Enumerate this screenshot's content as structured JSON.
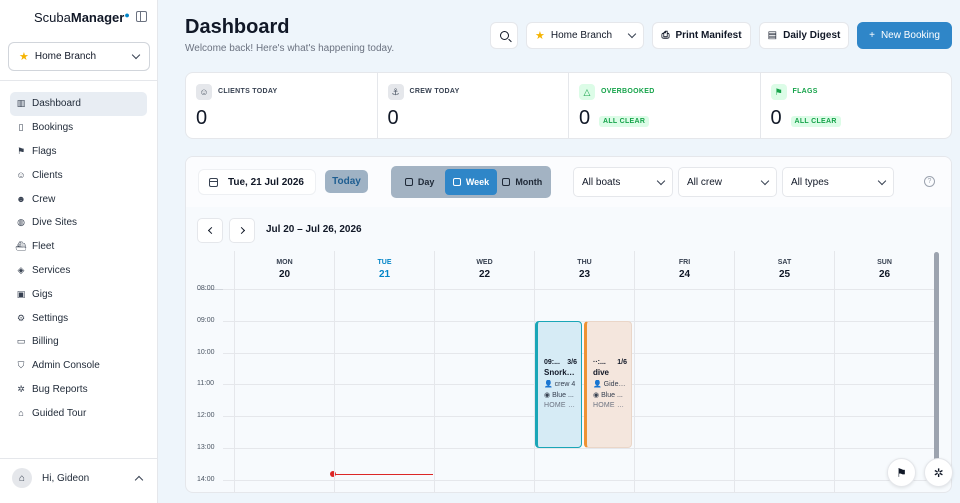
{
  "sidebar": {
    "brand_light": "Scuba",
    "brand_bold": "Manager",
    "branch": "Home Branch",
    "items": [
      {
        "label": "Dashboard",
        "icon": "chart-icon",
        "glyph": "▥",
        "active": true
      },
      {
        "label": "Bookings",
        "icon": "book-icon",
        "glyph": "▯"
      },
      {
        "label": "Flags",
        "icon": "flag-icon",
        "glyph": "⚑"
      },
      {
        "label": "Clients",
        "icon": "users-icon",
        "glyph": "☺"
      },
      {
        "label": "Crew",
        "icon": "user-plus-icon",
        "glyph": "☻"
      },
      {
        "label": "Dive Sites",
        "icon": "globe-icon",
        "glyph": "◍"
      },
      {
        "label": "Fleet",
        "icon": "ship-icon",
        "glyph": "⛴"
      },
      {
        "label": "Services",
        "icon": "package-icon",
        "glyph": "◈"
      },
      {
        "label": "Gigs",
        "icon": "briefcase-icon",
        "glyph": "▣"
      },
      {
        "label": "Settings",
        "icon": "gear-icon",
        "glyph": "⚙"
      },
      {
        "label": "Billing",
        "icon": "credit-card-icon",
        "glyph": "▭"
      },
      {
        "label": "Admin Console",
        "icon": "shield-icon",
        "glyph": "⛉"
      },
      {
        "label": "Bug Reports",
        "icon": "bug-icon",
        "glyph": "✲"
      },
      {
        "label": "Guided Tour",
        "icon": "graduation-cap-icon",
        "glyph": "⌂"
      }
    ],
    "user_greeting": "Hi, Gideon"
  },
  "header": {
    "title": "Dashboard",
    "subtitle": "Welcome back! Here's what's happening today.",
    "branch": "Home Branch",
    "print_label": "Print Manifest",
    "digest_label": "Daily Digest",
    "new_label": "New Booking"
  },
  "stats": [
    {
      "label": "CLIENTS TODAY",
      "value": "0",
      "icon": "users-icon",
      "glyph": "☺"
    },
    {
      "label": "CREW TODAY",
      "value": "0",
      "icon": "anchor-icon",
      "glyph": "⚓"
    },
    {
      "label": "OVERBOOKED",
      "value": "0",
      "badge": "ALL CLEAR",
      "icon": "warning-icon",
      "glyph": "△"
    },
    {
      "label": "FLAGS",
      "value": "0",
      "badge": "ALL CLEAR",
      "icon": "flag-icon",
      "glyph": "⚑"
    }
  ],
  "calendar": {
    "date": "Tue, 21 Jul 2026",
    "today_label": "Today",
    "views": [
      "Day",
      "Week",
      "Month"
    ],
    "active_view": "Week",
    "filters": [
      "All boats",
      "All crew",
      "All types"
    ],
    "range": "Jul 20 – Jul 26, 2026",
    "days": [
      {
        "name": "MON",
        "num": "20"
      },
      {
        "name": "TUE",
        "num": "21",
        "today": true
      },
      {
        "name": "WED",
        "num": "22"
      },
      {
        "name": "THU",
        "num": "23"
      },
      {
        "name": "FRI",
        "num": "24"
      },
      {
        "name": "SAT",
        "num": "25"
      },
      {
        "name": "SUN",
        "num": "26"
      }
    ],
    "hours": [
      "08:00",
      "09:00",
      "10:00",
      "11:00",
      "12:00",
      "13:00",
      "14:00"
    ],
    "events": [
      {
        "time": "09:...",
        "count": "3/6",
        "title": "Snorke...",
        "crew": "crew 4",
        "site": "Blue ...",
        "branch": "HOME B...",
        "color": "#1aa6b7"
      },
      {
        "time": "··:...",
        "count": "1/6",
        "title": "dive",
        "crew": "Gideo...",
        "site": "Blue ...",
        "branch": "HOME B...",
        "color": "#ef9334"
      }
    ]
  },
  "colors": {
    "accent": "#2f86c8",
    "today": "#0284c7",
    "now_line": "#dc2626",
    "success": "#16a34a"
  }
}
